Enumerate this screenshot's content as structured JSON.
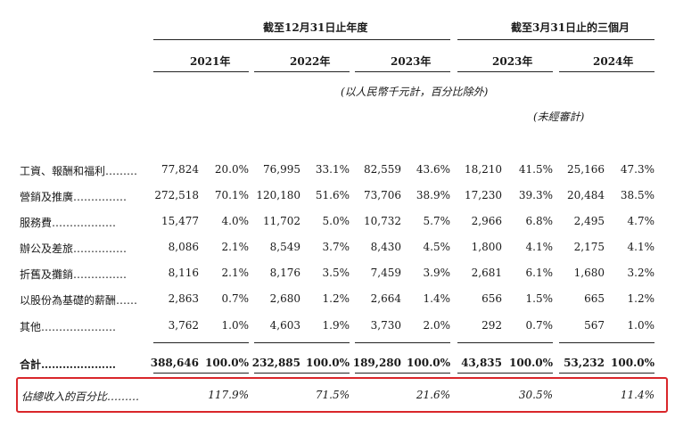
{
  "header": {
    "group_fy": "截至12月31日止年度",
    "group_q1": "截至3月31日止的三個月",
    "years": [
      "2021年",
      "2022年",
      "2023年",
      "2023年",
      "2024年"
    ],
    "unit_note": "(以人民幣千元計，百分比除外)",
    "unaudited_note": "(未經審計)"
  },
  "rows": [
    {
      "label": "工資、報酬和福利………",
      "values": [
        "77,824",
        "20.0%",
        "76,995",
        "33.1%",
        "82,559",
        "43.6%",
        "18,210",
        "41.5%",
        "25,166",
        "47.3%"
      ]
    },
    {
      "label": "營銷及推廣……………",
      "values": [
        "272,518",
        "70.1%",
        "120,180",
        "51.6%",
        "73,706",
        "38.9%",
        "17,230",
        "39.3%",
        "20,484",
        "38.5%"
      ]
    },
    {
      "label": "服務費………………",
      "values": [
        "15,477",
        "4.0%",
        "11,702",
        "5.0%",
        "10,732",
        "5.7%",
        "2,966",
        "6.8%",
        "2,495",
        "4.7%"
      ]
    },
    {
      "label": "辦公及差旅……………",
      "values": [
        "8,086",
        "2.1%",
        "8,549",
        "3.7%",
        "8,430",
        "4.5%",
        "1,800",
        "4.1%",
        "2,175",
        "4.1%"
      ]
    },
    {
      "label": "折舊及攤銷……………",
      "values": [
        "8,116",
        "2.1%",
        "8,176",
        "3.5%",
        "7,459",
        "3.9%",
        "2,681",
        "6.1%",
        "1,680",
        "3.2%"
      ]
    },
    {
      "label": "以股份為基礎的薪酬……",
      "values": [
        "2,863",
        "0.7%",
        "2,680",
        "1.2%",
        "2,664",
        "1.4%",
        "656",
        "1.5%",
        "665",
        "1.2%"
      ]
    },
    {
      "label": "其他…………………",
      "values": [
        "3,762",
        "1.0%",
        "4,603",
        "1.9%",
        "3,730",
        "2.0%",
        "292",
        "0.7%",
        "567",
        "1.0%"
      ]
    }
  ],
  "total": {
    "label": "合計…………………",
    "values": [
      "388,646",
      "100.0%",
      "232,885",
      "100.0%",
      "189,280",
      "100.0%",
      "43,835",
      "100.0%",
      "53,232",
      "100.0%"
    ]
  },
  "revenue_pct": {
    "label": "佔總收入的百分比………",
    "values": [
      "117.9%",
      "71.5%",
      "21.6%",
      "30.5%",
      "11.4%"
    ]
  }
}
